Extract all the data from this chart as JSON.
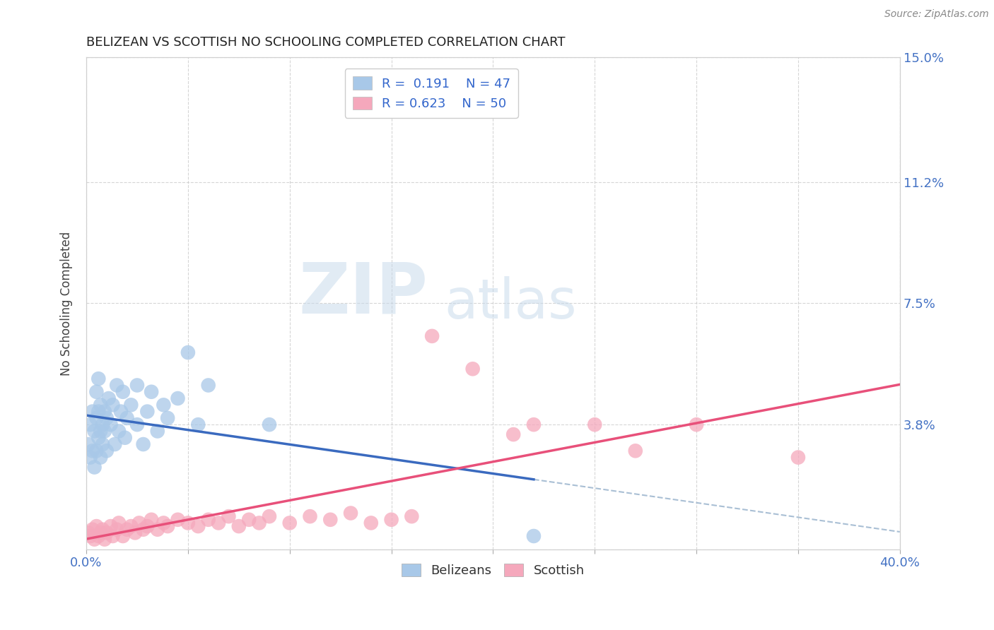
{
  "title": "BELIZEAN VS SCOTTISH NO SCHOOLING COMPLETED CORRELATION CHART",
  "source": "Source: ZipAtlas.com",
  "ylabel": "No Schooling Completed",
  "xlim": [
    0.0,
    0.4
  ],
  "ylim": [
    0.0,
    0.15
  ],
  "xtick_positions": [
    0.0,
    0.05,
    0.1,
    0.15,
    0.2,
    0.25,
    0.3,
    0.35,
    0.4
  ],
  "xticklabels": [
    "0.0%",
    "",
    "",
    "",
    "",
    "",
    "",
    "",
    "40.0%"
  ],
  "ytick_positions": [
    0.0,
    0.038,
    0.075,
    0.112,
    0.15
  ],
  "yticklabels_right": [
    "",
    "3.8%",
    "7.5%",
    "11.2%",
    "15.0%"
  ],
  "belizean_R": 0.191,
  "belizean_N": 47,
  "scottish_R": 0.623,
  "scottish_N": 50,
  "belizean_color": "#a8c8e8",
  "scottish_color": "#f5a8bc",
  "belizean_line_color": "#3a6abf",
  "scottish_line_color": "#e8507a",
  "trend_line_color": "#a0b8d0",
  "background_color": "#ffffff",
  "belizean_x": [
    0.001,
    0.002,
    0.002,
    0.003,
    0.003,
    0.004,
    0.004,
    0.005,
    0.005,
    0.005,
    0.006,
    0.006,
    0.006,
    0.007,
    0.007,
    0.007,
    0.008,
    0.008,
    0.009,
    0.009,
    0.01,
    0.01,
    0.011,
    0.012,
    0.013,
    0.014,
    0.015,
    0.016,
    0.017,
    0.018,
    0.019,
    0.02,
    0.022,
    0.025,
    0.025,
    0.028,
    0.03,
    0.032,
    0.035,
    0.038,
    0.04,
    0.045,
    0.05,
    0.055,
    0.06,
    0.09,
    0.22
  ],
  "belizean_y": [
    0.032,
    0.038,
    0.028,
    0.042,
    0.03,
    0.036,
    0.025,
    0.04,
    0.03,
    0.048,
    0.034,
    0.042,
    0.052,
    0.036,
    0.044,
    0.028,
    0.038,
    0.032,
    0.042,
    0.036,
    0.04,
    0.03,
    0.046,
    0.038,
    0.044,
    0.032,
    0.05,
    0.036,
    0.042,
    0.048,
    0.034,
    0.04,
    0.044,
    0.038,
    0.05,
    0.032,
    0.042,
    0.048,
    0.036,
    0.044,
    0.04,
    0.046,
    0.06,
    0.038,
    0.05,
    0.038,
    0.004
  ],
  "scottish_x": [
    0.001,
    0.002,
    0.003,
    0.004,
    0.005,
    0.006,
    0.007,
    0.008,
    0.009,
    0.01,
    0.012,
    0.013,
    0.015,
    0.016,
    0.018,
    0.02,
    0.022,
    0.024,
    0.026,
    0.028,
    0.03,
    0.032,
    0.035,
    0.038,
    0.04,
    0.045,
    0.05,
    0.055,
    0.06,
    0.065,
    0.07,
    0.075,
    0.08,
    0.085,
    0.09,
    0.1,
    0.11,
    0.12,
    0.13,
    0.14,
    0.15,
    0.16,
    0.17,
    0.19,
    0.21,
    0.22,
    0.25,
    0.27,
    0.3,
    0.35
  ],
  "scottish_y": [
    0.005,
    0.004,
    0.006,
    0.003,
    0.007,
    0.004,
    0.005,
    0.006,
    0.003,
    0.005,
    0.007,
    0.004,
    0.006,
    0.008,
    0.004,
    0.006,
    0.007,
    0.005,
    0.008,
    0.006,
    0.007,
    0.009,
    0.006,
    0.008,
    0.007,
    0.009,
    0.008,
    0.007,
    0.009,
    0.008,
    0.01,
    0.007,
    0.009,
    0.008,
    0.01,
    0.008,
    0.01,
    0.009,
    0.011,
    0.008,
    0.009,
    0.01,
    0.065,
    0.055,
    0.035,
    0.038,
    0.038,
    0.03,
    0.038,
    0.028
  ],
  "belizean_line_x": [
    0.0,
    0.22
  ],
  "scottish_line_x": [
    0.0,
    0.4
  ],
  "watermark_text": "ZIPatlas",
  "watermark_zip": "ZIP",
  "watermark_atlas": "atlas"
}
